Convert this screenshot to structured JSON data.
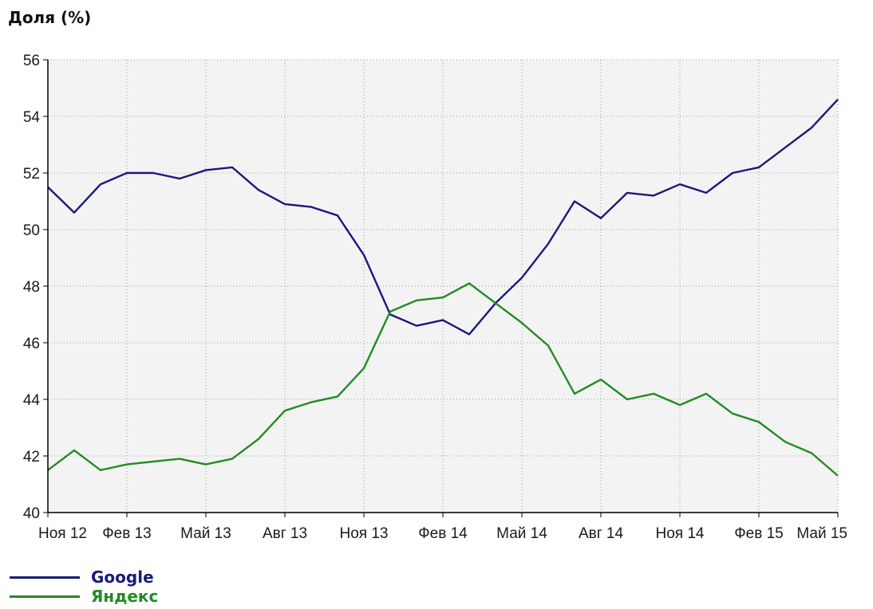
{
  "chart_data": {
    "type": "line",
    "title": "Доля (%)",
    "xlabel": "",
    "ylabel": "",
    "ylim": [
      40,
      56
    ],
    "yticks": [
      40,
      42,
      44,
      46,
      48,
      50,
      52,
      54,
      56
    ],
    "x_tick_labels": [
      "Ноя 12",
      "Фев 13",
      "Май 13",
      "Авг 13",
      "Ноя 13",
      "Фев 14",
      "Май 14",
      "Авг 14",
      "Ноя 14",
      "Фев 15",
      "Май 15"
    ],
    "x": [
      "Ноя 12",
      "Дек 12",
      "Янв 13",
      "Фев 13",
      "Мар 13",
      "Апр 13",
      "Май 13",
      "Июн 13",
      "Июл 13",
      "Авг 13",
      "Сен 13",
      "Окт 13",
      "Ноя 13",
      "Дек 13",
      "Янв 14",
      "Фев 14",
      "Мар 14",
      "Апр 14",
      "Май 14",
      "Июн 14",
      "Июл 14",
      "Авг 14",
      "Сен 14",
      "Окт 14",
      "Ноя 14",
      "Дек 14",
      "Янв 15",
      "Фев 15",
      "Мар 15",
      "Апр 15",
      "Май 15"
    ],
    "grid": true,
    "legend_position": "bottom-left",
    "series": [
      {
        "name": "Google",
        "color": "#1a1a7a",
        "values": [
          51.5,
          50.6,
          51.6,
          52.0,
          52.0,
          51.8,
          52.1,
          52.2,
          51.4,
          50.9,
          50.8,
          50.5,
          49.1,
          47.0,
          46.6,
          46.8,
          46.3,
          47.4,
          48.3,
          49.5,
          51.0,
          50.4,
          51.3,
          51.2,
          51.6,
          51.3,
          52.0,
          52.2,
          52.9,
          53.6,
          54.6
        ]
      },
      {
        "name": "Яндекс",
        "color": "#228b22",
        "values": [
          41.5,
          42.2,
          41.5,
          41.7,
          41.8,
          41.9,
          41.7,
          41.9,
          42.6,
          43.6,
          43.9,
          44.1,
          45.1,
          47.1,
          47.5,
          47.6,
          48.1,
          47.4,
          46.7,
          45.9,
          44.2,
          44.7,
          44.0,
          44.2,
          43.8,
          44.2,
          43.5,
          43.2,
          42.5,
          42.1,
          41.3
        ]
      }
    ]
  }
}
